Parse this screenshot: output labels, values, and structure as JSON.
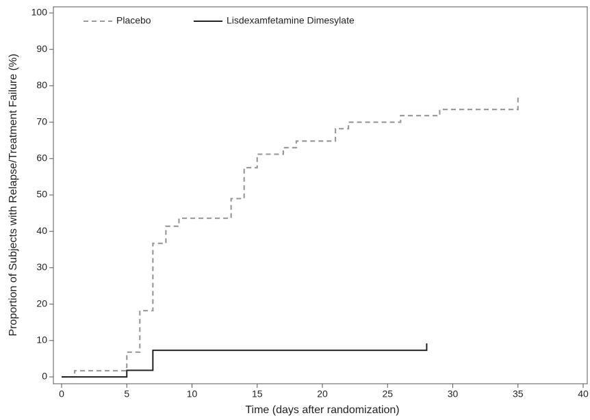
{
  "chart_data": {
    "type": "step",
    "xlabel": "Time (days after randomization)",
    "ylabel": "Proportion of Subjects with Relapse/Treatment Failure (%)",
    "xlim": [
      0,
      40
    ],
    "xticks": [
      0,
      5,
      10,
      15,
      20,
      25,
      30,
      35,
      40
    ],
    "ylim": [
      0,
      100
    ],
    "yticks": [
      0,
      10,
      20,
      30,
      40,
      50,
      60,
      70,
      80,
      90,
      100
    ],
    "legend": "top",
    "series": [
      {
        "name": "Placebo",
        "color": "#9a9a9a",
        "dash": true,
        "x": [
          0,
          1,
          5,
          6,
          7,
          8,
          9,
          13,
          14,
          15,
          17,
          18,
          21,
          22,
          26,
          29,
          35
        ],
        "values": [
          0,
          1.7,
          6.8,
          18.2,
          36.7,
          41.4,
          43.6,
          49,
          57.5,
          61.2,
          63,
          64.8,
          68.2,
          70,
          71.8,
          73.5,
          76.9
        ]
      },
      {
        "name": "Lisdexamfetamine Dimesylate",
        "color": "#222222",
        "dash": false,
        "x": [
          0,
          5,
          7,
          28
        ],
        "values": [
          0,
          1.8,
          7.3,
          9.2
        ]
      }
    ]
  }
}
